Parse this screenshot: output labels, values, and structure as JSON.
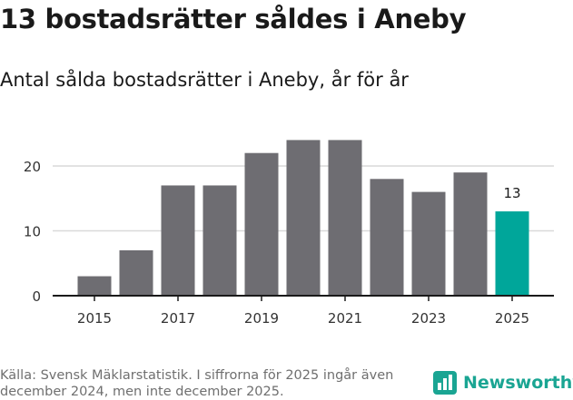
{
  "header": {
    "title": "13 bostadsrätter såldes i Aneby",
    "subtitle": "Antal sålda bostadsrätter i Aneby, år för år"
  },
  "footer": {
    "source": "Källa: Svensk Mäklarstatistik. I siffrorna för 2025 ingår även december 2024, men inte december 2025.",
    "brand": "Newsworthy"
  },
  "colors": {
    "bar": "#6e6d72",
    "highlight": "#00a69a",
    "grid": "#d9d9d9",
    "axis": "#1a1a1a",
    "brand": "#1aa593"
  },
  "chart_data": {
    "type": "bar",
    "title": "Antal sålda bostadsrätter i Aneby, år för år",
    "xlabel": "",
    "ylabel": "",
    "categories": [
      "2015",
      "2016",
      "2017",
      "2018",
      "2019",
      "2020",
      "2021",
      "2022",
      "2023",
      "2024",
      "2025"
    ],
    "values": [
      3,
      7,
      17,
      17,
      22,
      24,
      24,
      18,
      16,
      19,
      13
    ],
    "highlight_index": 10,
    "data_labels": [
      {
        "index": 10,
        "text": "13"
      }
    ],
    "xticks": [
      "2015",
      "2017",
      "2019",
      "2021",
      "2023",
      "2025"
    ],
    "yticks": [
      0,
      10,
      20
    ],
    "ylim": [
      0,
      25
    ],
    "grid": true
  }
}
